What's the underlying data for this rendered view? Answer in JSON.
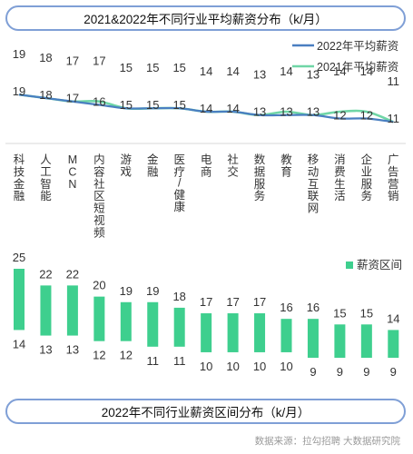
{
  "line_chart_title": "2021&2022年不同行业平均薪资分布（k/月）",
  "range_chart_title": "2022年不同行业薪资区间分布（k/月）",
  "source": "数据来源：拉勾招聘 大数据研究院",
  "colors": {
    "line_2022": "#4a7fc1",
    "line_2021": "#6fd6a6",
    "bar": "#3ecf8e"
  },
  "chart_data": [
    {
      "type": "line",
      "categories": [
        "科技金融",
        "人工智能",
        "MCN",
        "内容社区/短视频",
        "游戏",
        "金融",
        "医疗/健康",
        "电商",
        "社交",
        "数据服务",
        "教育",
        "移动互联网",
        "消费生活",
        "企业服务",
        "广告营销"
      ],
      "category_labels": [
        "科技金融",
        "人工智能",
        "MCN",
        "内容社区短视频",
        "游戏",
        "金融",
        "医疗/健康",
        "电商",
        "社交",
        "数据服务",
        "教育",
        "移动互联网",
        "消费生活",
        "企业服务",
        "广告营销"
      ],
      "series": [
        {
          "name": "2022年平均薪资",
          "values": [
            19,
            18,
            17,
            16,
            15,
            15,
            15,
            14,
            14,
            13,
            13,
            13,
            12,
            12,
            11
          ]
        },
        {
          "name": "2021年平均薪资",
          "values": [
            19,
            18,
            17,
            17,
            15,
            15,
            15,
            14,
            14,
            13,
            14,
            13,
            14,
            14,
            11
          ]
        }
      ],
      "legend": "top-right"
    },
    {
      "type": "bar",
      "categories": [
        "科技金融",
        "人工智能",
        "MCN",
        "内容社区/短视频",
        "游戏",
        "金融",
        "医疗/健康",
        "电商",
        "社交",
        "数据服务",
        "教育",
        "移动互联网",
        "消费生活",
        "企业服务",
        "广告营销"
      ],
      "series": [
        {
          "name": "薪资区间",
          "max": [
            25,
            22,
            22,
            20,
            19,
            19,
            18,
            17,
            17,
            17,
            16,
            16,
            15,
            15,
            14
          ],
          "min": [
            14,
            13,
            13,
            12,
            12,
            11,
            11,
            10,
            10,
            10,
            10,
            9,
            9,
            9,
            9
          ]
        }
      ],
      "legend": "right"
    }
  ]
}
